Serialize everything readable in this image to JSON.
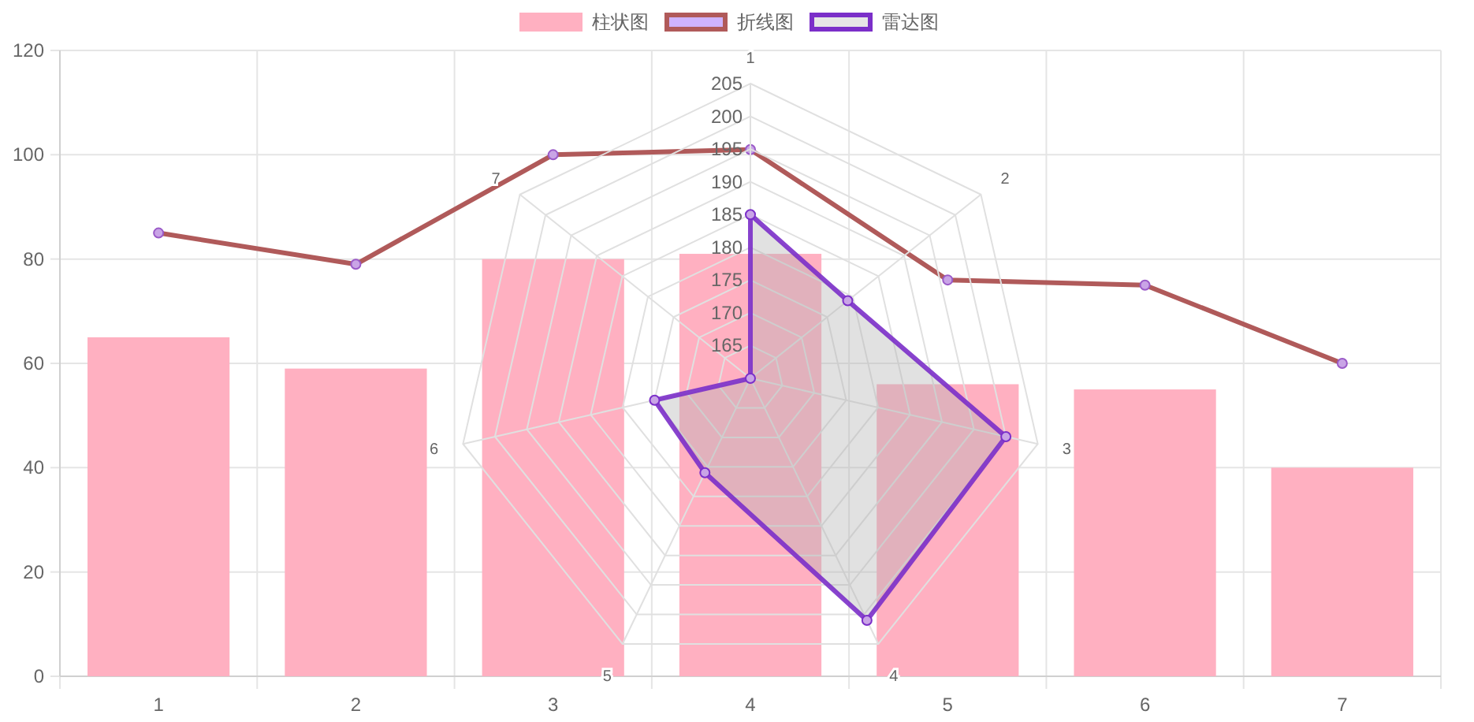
{
  "chart_data": [
    {
      "type": "bar",
      "categories": [
        "1",
        "2",
        "3",
        "4",
        "5",
        "6",
        "7"
      ],
      "series": [
        {
          "name": "柱状图",
          "type": "bar",
          "color": "#ffb0c1",
          "values": [
            65,
            59,
            80,
            81,
            56,
            55,
            40
          ]
        },
        {
          "name": "折线图",
          "type": "line",
          "color": "#b05a5a",
          "values": [
            85,
            79,
            100,
            101,
            76,
            75,
            60
          ]
        }
      ],
      "ylim": [
        0,
        120
      ],
      "yticks": [
        0,
        20,
        40,
        60,
        80,
        100,
        120
      ],
      "grid": true,
      "legend": "top",
      "marker": "circle"
    },
    {
      "type": "radar",
      "categories": [
        "1",
        "2",
        "3",
        "4",
        "5",
        "6",
        "7"
      ],
      "series": [
        {
          "name": "雷达图",
          "color": "#7b2fc9",
          "values": [
            185,
            179,
            200,
            201,
            176,
            175,
            160
          ]
        }
      ],
      "ylim": [
        160,
        205
      ],
      "yticks": [
        165,
        170,
        175,
        180,
        185,
        190,
        195,
        200,
        205
      ],
      "grid": true,
      "legend": "top",
      "marker": "circle"
    }
  ]
}
